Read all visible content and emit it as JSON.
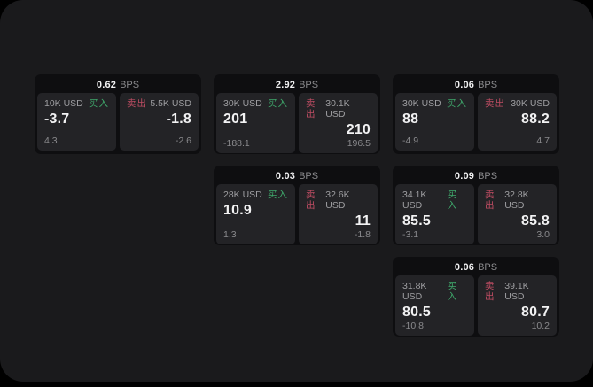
{
  "labels": {
    "buy": "买入",
    "sell": "卖出",
    "bps_unit": "BPS"
  },
  "colors": {
    "app_bg": "#1a1a1c",
    "card_bg": "#0e0e10",
    "panel_bg": "#232326",
    "buy_green": "#3fa96c",
    "sell_red": "#bf4d63"
  },
  "cards": [
    {
      "bps": "0.62",
      "buy": {
        "amount": "10K USD",
        "price": "-3.7",
        "delta": "4.3"
      },
      "sell": {
        "amount": "5.5K USD",
        "price": "-1.8",
        "delta": "-2.6"
      }
    },
    {
      "bps": "2.92",
      "buy": {
        "amount": "30K USD",
        "price": "201",
        "delta": "-188.1"
      },
      "sell": {
        "amount": "30.1K USD",
        "price": "210",
        "delta": "196.5"
      }
    },
    {
      "bps": "0.06",
      "buy": {
        "amount": "30K USD",
        "price": "88",
        "delta": "-4.9"
      },
      "sell": {
        "amount": "30K USD",
        "price": "88.2",
        "delta": "4.7"
      }
    },
    {
      "bps": "0.03",
      "buy": {
        "amount": "28K USD",
        "price": "10.9",
        "delta": "1.3"
      },
      "sell": {
        "amount": "32.6K USD",
        "price": "11",
        "delta": "-1.8"
      }
    },
    {
      "bps": "0.09",
      "buy": {
        "amount": "34.1K USD",
        "price": "85.5",
        "delta": "-3.1"
      },
      "sell": {
        "amount": "32.8K USD",
        "price": "85.8",
        "delta": "3.0"
      }
    },
    {
      "bps": "0.06",
      "buy": {
        "amount": "31.8K USD",
        "price": "80.5",
        "delta": "-10.8"
      },
      "sell": {
        "amount": "39.1K USD",
        "price": "80.7",
        "delta": "10.2"
      }
    }
  ]
}
